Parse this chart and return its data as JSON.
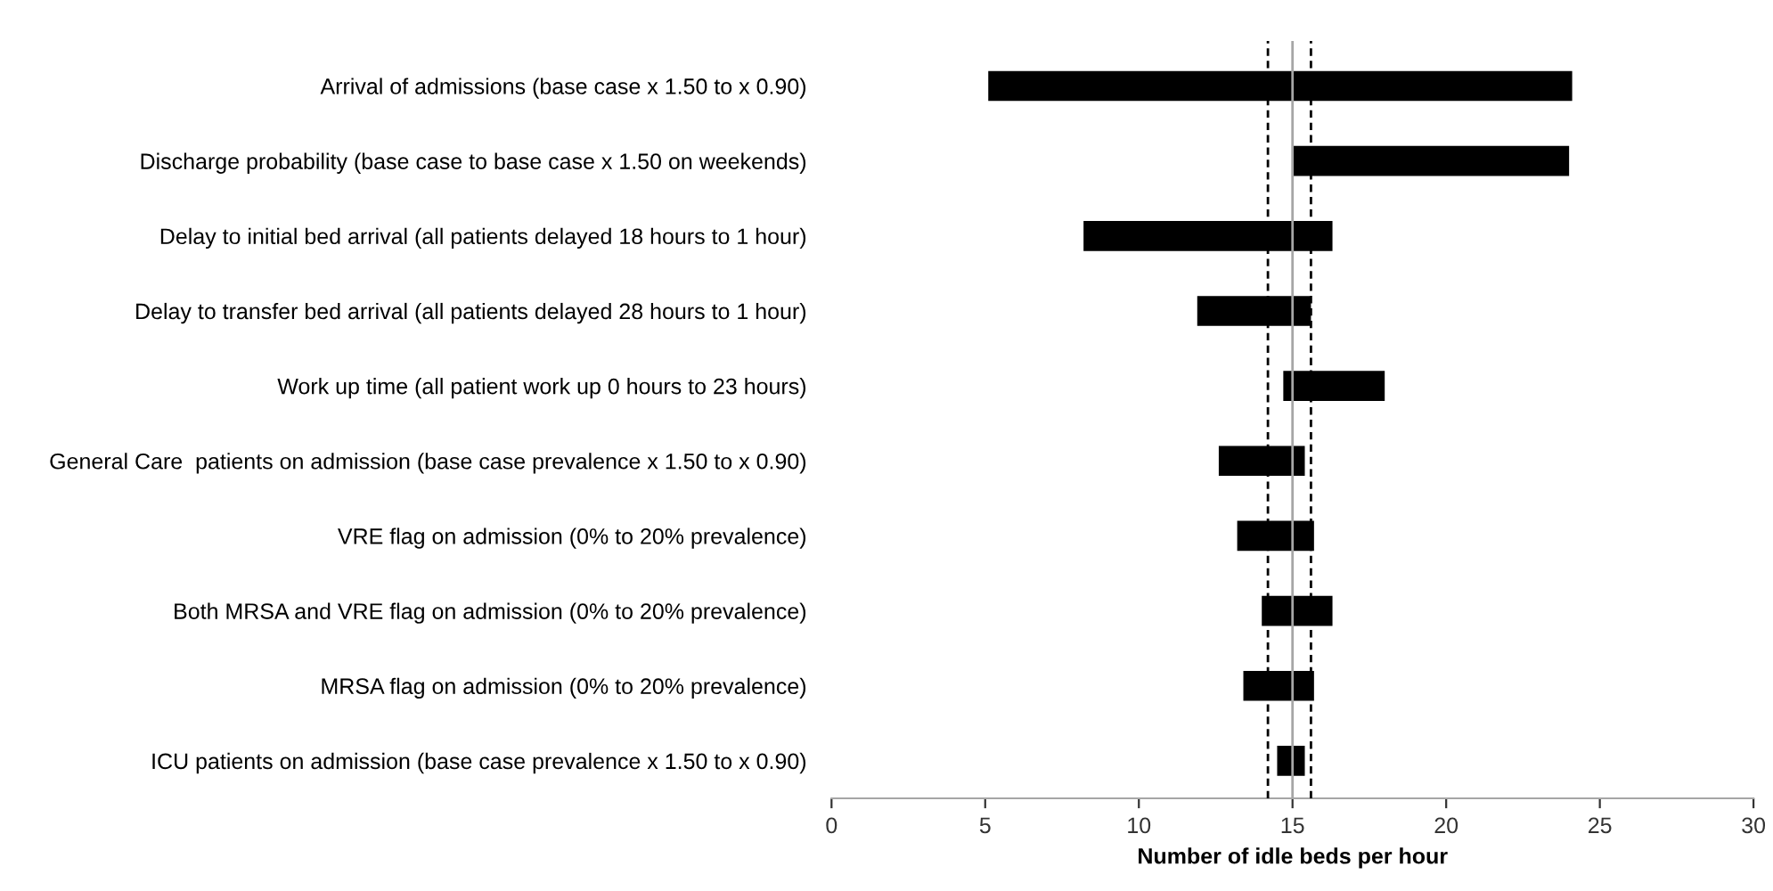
{
  "chart_data": {
    "type": "bar",
    "orientation": "horizontal",
    "xlabel": "Number of idle beds per hour",
    "categories": [
      "Arrival of admissions (base case x 1.50 to x 0.90)",
      "Discharge probability (base case to base case x 1.50 on weekends)",
      "Delay to initial bed arrival (all patients delayed 18 hours to 1 hour)",
      "Delay to transfer bed arrival (all patients delayed 28 hours to 1 hour)",
      "Work up time (all patient work up 0 hours to 23 hours)",
      "General Care  patients on admission (base case prevalence x 1.50 to x 0.90)",
      "VRE flag on admission (0% to 20% prevalence)",
      "Both MRSA and VRE flag on admission (0% to 20% prevalence)",
      "MRSA flag on admission (0% to 20% prevalence)",
      "ICU patients on admission (base case prevalence x 1.50 to x 0.90)"
    ],
    "base": [
      5.1,
      15.0,
      8.2,
      11.9,
      14.7,
      12.6,
      13.2,
      14.0,
      13.4,
      14.5
    ],
    "values": [
      19.0,
      9.0,
      8.1,
      3.7,
      3.3,
      2.8,
      2.5,
      2.3,
      2.3,
      0.9
    ],
    "color": "#000000",
    "xlim": [
      0,
      30
    ],
    "xticks": [
      0,
      5,
      10,
      15,
      20,
      25,
      30
    ],
    "ref_lines": [
      {
        "axis": "x",
        "value": 15,
        "color": "#a6a6a6",
        "line_style": "solid"
      },
      {
        "axis": "x",
        "value": 14.2,
        "color": "#000000",
        "line_style": "dashed"
      },
      {
        "axis": "x",
        "value": 15.6,
        "color": "#000000",
        "line_style": "dashed"
      }
    ],
    "grid": false,
    "legend": false
  }
}
